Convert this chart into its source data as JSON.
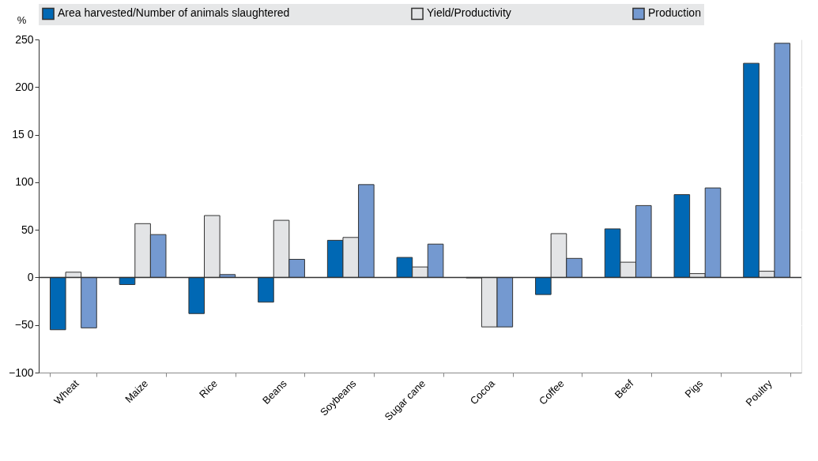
{
  "chart_data": {
    "type": "bar",
    "ylabel": "%",
    "categories": [
      "Wheat",
      "Maize",
      "Rice",
      "Beans",
      "Soybeans",
      "Sugar cane",
      "Cocoa",
      "Coffee",
      "Beef",
      "Pigs",
      "Poultry"
    ],
    "series": [
      {
        "name": "Area harvested/Number of animals slaughtered",
        "color": "#0068b4",
        "values": [
          -55,
          -7.5,
          -38,
          -26,
          39,
          21,
          -0.5,
          -18,
          51,
          87,
          225
        ]
      },
      {
        "name": "Yield/Productivity",
        "color": "#e3e4e6",
        "values": [
          5.5,
          56.5,
          65,
          60,
          42,
          11,
          -52,
          46,
          16,
          4,
          6.5
        ]
      },
      {
        "name": "Production",
        "color": "#7499d0",
        "values": [
          -53,
          45,
          3,
          19,
          97.5,
          35,
          -52,
          20,
          75.5,
          94,
          246
        ]
      }
    ],
    "ylim": [
      -100,
      250
    ],
    "yticks": [
      -100,
      -50,
      0,
      50,
      100,
      {
        "value": 150,
        "label": "15 0"
      },
      200,
      250
    ],
    "grid": true,
    "legend": "top"
  }
}
